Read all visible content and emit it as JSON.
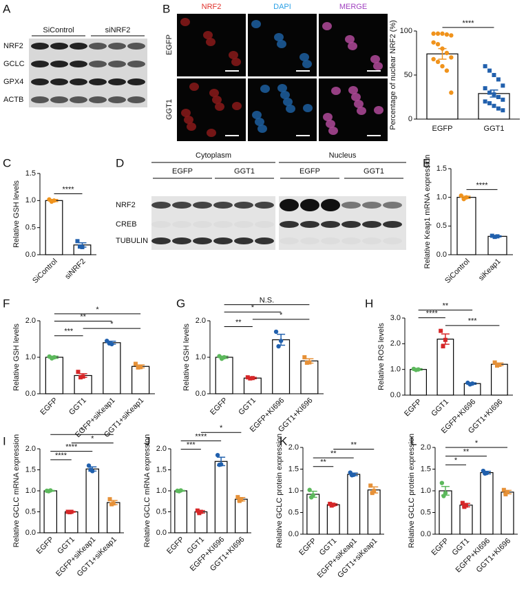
{
  "panels": [
    "A",
    "B",
    "C",
    "D",
    "E",
    "F",
    "G",
    "H",
    "I",
    "J",
    "K",
    "L"
  ],
  "blot_a": {
    "groups": [
      "SiControl",
      "siNRF2"
    ],
    "rows": [
      "NRF2",
      "GCLC",
      "GPX4",
      "ACTB"
    ]
  },
  "micro_b": {
    "columns": [
      "NRF2",
      "DAPI",
      "MERGE"
    ],
    "rows": [
      "EGFP",
      "GGT1"
    ]
  },
  "blot_d": {
    "sections": [
      "Cytoplasm",
      "Nucleus"
    ],
    "groups": [
      "EGFP",
      "GGT1",
      "EGFP",
      "GGT1"
    ],
    "rows": [
      "NRF2",
      "CREB",
      "TUBULIN"
    ]
  },
  "chart_data": [
    {
      "type": "bar",
      "ylabel": "Percentage of nuclear NRF2 (%)",
      "categories": [
        "EGFP",
        "GGT1"
      ],
      "colors": [
        "#f0931c",
        "#2160ad"
      ],
      "values": [
        74,
        29
      ],
      "errors": [
        6,
        4
      ],
      "points": [
        [
          97,
          97,
          97,
          96,
          95,
          87,
          85,
          80,
          75,
          70,
          68,
          65,
          60,
          55,
          30
        ],
        [
          60,
          55,
          50,
          45,
          38,
          35,
          30,
          28,
          25,
          22,
          20,
          18,
          15,
          12,
          10
        ]
      ],
      "ylim": [
        0,
        100
      ],
      "yticks": [
        0,
        50,
        100
      ],
      "annotations": [
        {
          "label": "****",
          "between": [
            "EGFP",
            "GGT1"
          ]
        }
      ]
    },
    {
      "type": "bar",
      "ylabel": "Relative GSH levels",
      "categories": [
        "SiControl",
        "siNRF2"
      ],
      "colors": [
        "#f0931c",
        "#2160ad"
      ],
      "values": [
        1.0,
        0.18
      ],
      "errors": [
        0.02,
        0.04
      ],
      "points": [
        [
          1.02,
          0.98,
          1.0
        ],
        [
          0.25,
          0.15,
          0.14
        ]
      ],
      "ylim": [
        0,
        1.5
      ],
      "yticks": [
        {
          "value": 0,
          "label": "0.0"
        },
        0.5,
        {
          "value": 1,
          "label": "1.0"
        },
        1.5
      ],
      "annotations": [
        {
          "label": "****",
          "between": [
            "SiControl",
            "siNRF2"
          ]
        }
      ]
    },
    {
      "type": "bar",
      "ylabel": "Relative Keap1 mRNA expression",
      "categories": [
        "SiControl",
        "siKeap1"
      ],
      "colors": [
        "#f0931c",
        "#2160ad"
      ],
      "values": [
        1.0,
        0.32
      ],
      "errors": [
        0.02,
        0.01
      ],
      "points": [
        [
          1.03,
          0.97,
          1.0
        ],
        [
          0.33,
          0.31,
          0.32
        ]
      ],
      "ylim": [
        0,
        1.5
      ],
      "yticks": [
        {
          "value": 0,
          "label": "0.0"
        },
        0.5,
        {
          "value": 1,
          "label": "1.0"
        },
        1.5
      ],
      "annotations": [
        {
          "label": "****",
          "between": [
            "SiControl",
            "siKeap1"
          ]
        }
      ]
    },
    {
      "type": "bar",
      "ylabel": "Relative GSH levels",
      "categories": [
        "EGFP",
        "GGT1",
        "EGFP+siKeap1",
        "GGT1+siKeap1"
      ],
      "colors": [
        "#5cb85c",
        "#d62728",
        "#2160ad",
        "#e69138"
      ],
      "values": [
        1.0,
        0.5,
        1.4,
        0.75
      ],
      "errors": [
        0.03,
        0.05,
        0.04,
        0.04
      ],
      "points": [
        [
          1.02,
          0.97,
          1.0
        ],
        [
          0.6,
          0.45,
          0.47
        ],
        [
          1.45,
          1.38,
          1.36
        ],
        [
          0.82,
          0.72,
          0.73
        ]
      ],
      "ylim": [
        0,
        2
      ],
      "yticks": [
        {
          "value": 0,
          "label": "0.0"
        },
        {
          "value": 1,
          "label": "1.0"
        },
        {
          "value": 2,
          "label": "2.0"
        }
      ],
      "annotations": [
        {
          "label": "***",
          "between": [
            "EGFP",
            "GGT1"
          ]
        },
        {
          "label": "*",
          "between": [
            "GGT1",
            "GGT1+siKeap1"
          ]
        },
        {
          "label": "**",
          "between": [
            "EGFP",
            "EGFP+siKeap1"
          ]
        },
        {
          "label": "*",
          "between": [
            "EGFP",
            "GGT1+siKeap1"
          ]
        }
      ]
    },
    {
      "type": "bar",
      "ylabel": "Relative GSH levels",
      "categories": [
        "EGFP",
        "GGT1",
        "EGFP+KI696",
        "GGT1+KI696"
      ],
      "colors": [
        "#5cb85c",
        "#d62728",
        "#2160ad",
        "#e69138"
      ],
      "values": [
        1.0,
        0.43,
        1.48,
        0.9
      ],
      "errors": [
        0.03,
        0.02,
        0.15,
        0.06
      ],
      "points": [
        [
          1.03,
          0.96,
          1.0
        ],
        [
          0.45,
          0.42,
          0.43
        ],
        [
          1.7,
          1.3,
          1.45
        ],
        [
          1.0,
          0.85,
          0.86
        ]
      ],
      "ylim": [
        0,
        2
      ],
      "yticks": [
        {
          "value": 0,
          "label": "0.0"
        },
        {
          "value": 1,
          "label": "1.0"
        },
        {
          "value": 2,
          "label": "2.0"
        }
      ],
      "annotations": [
        {
          "label": "**",
          "between": [
            "EGFP",
            "GGT1"
          ]
        },
        {
          "label": "*",
          "between": [
            "GGT1",
            "GGT1+KI696"
          ]
        },
        {
          "label": "*",
          "between": [
            "EGFP",
            "EGFP+KI696"
          ]
        },
        {
          "label": "N.S.",
          "between": [
            "EGFP",
            "GGT1+KI696"
          ]
        }
      ]
    },
    {
      "type": "bar",
      "ylabel": "Relative ROS levels",
      "categories": [
        "EGFP",
        "GGT1",
        "EGFP+KI696",
        "GGT1+KI696"
      ],
      "colors": [
        "#5cb85c",
        "#d62728",
        "#2160ad",
        "#e69138"
      ],
      "values": [
        1.0,
        2.18,
        0.45,
        1.2
      ],
      "errors": [
        0.03,
        0.2,
        0.03,
        0.05
      ],
      "points": [
        [
          1.02,
          0.98,
          1.0
        ],
        [
          2.5,
          1.9,
          2.15
        ],
        [
          0.48,
          0.42,
          0.45
        ],
        [
          1.27,
          1.15,
          1.18
        ]
      ],
      "ylim": [
        0,
        3
      ],
      "yticks": [
        {
          "value": 0,
          "label": "0.0"
        },
        {
          "value": 1,
          "label": "1.0"
        },
        {
          "value": 2,
          "label": "2.0"
        },
        {
          "value": 3,
          "label": "3.0"
        }
      ],
      "annotations": [
        {
          "label": "***",
          "between": [
            "GGT1",
            "GGT1+KI696"
          ]
        },
        {
          "label": "****",
          "between": [
            "EGFP",
            "GGT1"
          ]
        },
        {
          "label": "**",
          "between": [
            "EGFP",
            "EGFP+KI696"
          ]
        }
      ]
    },
    {
      "type": "bar",
      "ylabel": "Relative GCLC mRNA expression",
      "categories": [
        "EGFP",
        "GGT1",
        "EGFP+siKeap1",
        "GGT1+siKeap1"
      ],
      "colors": [
        "#5cb85c",
        "#d62728",
        "#2160ad",
        "#e69138"
      ],
      "values": [
        1.0,
        0.5,
        1.52,
        0.72
      ],
      "errors": [
        0.01,
        0.01,
        0.05,
        0.05
      ],
      "points": [
        [
          1.0,
          0.99,
          1.01
        ],
        [
          0.5,
          0.49,
          0.5
        ],
        [
          1.6,
          1.5,
          1.47
        ],
        [
          0.8,
          0.68,
          0.7
        ]
      ],
      "ylim": [
        0,
        2
      ],
      "yticks": [
        {
          "value": 0,
          "label": "0.0"
        },
        0.5,
        {
          "value": 1,
          "label": "1.0"
        },
        1.5,
        {
          "value": 2,
          "label": "2.0"
        }
      ],
      "annotations": [
        {
          "label": "****",
          "between": [
            "EGFP",
            "GGT1"
          ]
        },
        {
          "label": "****",
          "between": [
            "EGFP",
            "EGFP+siKeap1"
          ]
        },
        {
          "label": "*",
          "between": [
            "GGT1",
            "GGT1+siKeap1"
          ]
        },
        {
          "label": "*",
          "between": [
            "EGFP",
            "GGT1+siKeap1"
          ]
        }
      ]
    },
    {
      "type": "bar",
      "ylabel": "Relative GCLC mRNA expression",
      "categories": [
        "EGFP",
        "GGT1",
        "EGFP+KI696",
        "GGT1+KI696"
      ],
      "colors": [
        "#5cb85c",
        "#d62728",
        "#2160ad",
        "#e69138"
      ],
      "values": [
        1.0,
        0.5,
        1.7,
        0.8
      ],
      "errors": [
        0.01,
        0.03,
        0.1,
        0.04
      ],
      "points": [
        [
          1.0,
          0.99,
          1.01
        ],
        [
          0.53,
          0.47,
          0.5
        ],
        [
          1.85,
          1.62,
          1.63
        ],
        [
          0.85,
          0.76,
          0.79
        ]
      ],
      "ylim": [
        0,
        2
      ],
      "yticks": [
        {
          "value": 0,
          "label": "0.0"
        },
        0.5,
        {
          "value": 1,
          "label": "1.0"
        },
        1.5,
        {
          "value": 2,
          "label": "2.0"
        }
      ],
      "annotations": [
        {
          "label": "***",
          "between": [
            "EGFP",
            "GGT1"
          ]
        },
        {
          "label": "****",
          "between": [
            "EGFP",
            "EGFP+KI696"
          ]
        },
        {
          "label": "*",
          "between": [
            "GGT1",
            "GGT1+KI696"
          ]
        }
      ]
    },
    {
      "type": "bar",
      "ylabel": "Relative GCLC protein expression",
      "categories": [
        "EGFP",
        "GGT1",
        "EGFP+siKeap1",
        "GGT1+siKeap1"
      ],
      "colors": [
        "#5cb85c",
        "#d62728",
        "#2160ad",
        "#e69138"
      ],
      "values": [
        0.92,
        0.68,
        1.38,
        1.02
      ],
      "errors": [
        0.07,
        0.02,
        0.03,
        0.07
      ],
      "points": [
        [
          1.02,
          0.85,
          0.9
        ],
        [
          0.7,
          0.66,
          0.68
        ],
        [
          1.42,
          1.36,
          1.37
        ],
        [
          1.12,
          0.95,
          1.0
        ]
      ],
      "ylim": [
        0,
        2
      ],
      "yticks": [
        {
          "value": 0,
          "label": "0.0"
        },
        0.5,
        {
          "value": 1,
          "label": "1.0"
        },
        1.5,
        {
          "value": 2,
          "label": "2.0"
        }
      ],
      "annotations": [
        {
          "label": "**",
          "between": [
            "EGFP",
            "GGT1"
          ]
        },
        {
          "label": "**",
          "between": [
            "EGFP",
            "EGFP+siKeap1"
          ]
        },
        {
          "label": "**",
          "between": [
            "GGT1",
            "GGT1+siKeap1"
          ]
        }
      ]
    },
    {
      "type": "bar",
      "ylabel": "Relative GCLC protein expression",
      "categories": [
        "EGFP",
        "GGT1",
        "EGFP+KI696",
        "GGT1+KI696"
      ],
      "colors": [
        "#5cb85c",
        "#d62728",
        "#2160ad",
        "#e69138"
      ],
      "values": [
        1.0,
        0.67,
        1.42,
        0.97
      ],
      "errors": [
        0.1,
        0.04,
        0.03,
        0.04
      ],
      "points": [
        [
          1.18,
          0.88,
          0.95
        ],
        [
          0.72,
          0.63,
          0.66
        ],
        [
          1.46,
          1.4,
          1.41
        ],
        [
          1.02,
          0.92,
          0.97
        ]
      ],
      "ylim": [
        0,
        2
      ],
      "yticks": [
        {
          "value": 0,
          "label": "0.0"
        },
        0.5,
        {
          "value": 1,
          "label": "1.0"
        },
        1.5,
        {
          "value": 2,
          "label": "2.0"
        }
      ],
      "annotations": [
        {
          "label": "*",
          "between": [
            "EGFP",
            "GGT1"
          ]
        },
        {
          "label": "**",
          "between": [
            "EGFP",
            "EGFP+KI696"
          ]
        },
        {
          "label": "*",
          "between": [
            "EGFP",
            "GGT1+KI696"
          ]
        }
      ]
    }
  ]
}
